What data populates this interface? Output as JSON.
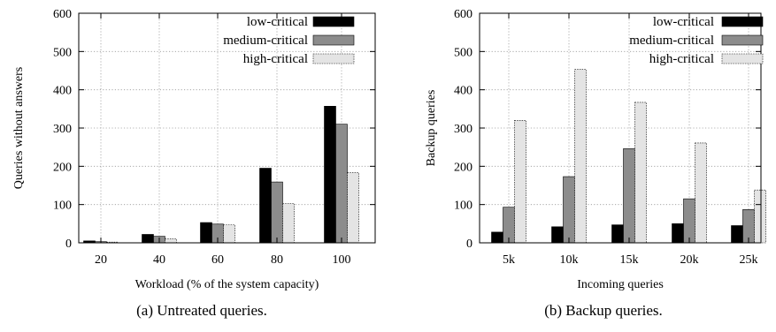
{
  "colors": {
    "low": "#000000",
    "medium": "#8c8c8c",
    "high": "#e4e4e4"
  },
  "chart_data": [
    {
      "type": "bar",
      "caption": "(a)  Untreated queries.",
      "xlabel": "Workload (% of the system capacity)",
      "ylabel": "Queries without answers",
      "ylim": [
        0,
        600
      ],
      "yticks": [
        0,
        100,
        200,
        300,
        400,
        500,
        600
      ],
      "categories": [
        "20",
        "40",
        "60",
        "80",
        "100"
      ],
      "grid": true,
      "legend_position": "top-right",
      "series": [
        {
          "name": "low-critical",
          "color_key": "low",
          "values": [
            5,
            22,
            53,
            195,
            357
          ]
        },
        {
          "name": "medium-critical",
          "color_key": "medium",
          "values": [
            3,
            17,
            49,
            159,
            310
          ]
        },
        {
          "name": "high-critical",
          "color_key": "high",
          "values": [
            2,
            10,
            47,
            103,
            183
          ]
        }
      ]
    },
    {
      "type": "bar",
      "caption": "(b)  Backup queries.",
      "xlabel": "Incoming queries",
      "ylabel": "Backup queries",
      "ylim": [
        0,
        600
      ],
      "yticks": [
        0,
        100,
        200,
        300,
        400,
        500,
        600
      ],
      "categories": [
        "5k",
        "10k",
        "15k",
        "20k",
        "25k"
      ],
      "grid": true,
      "legend_position": "top-right",
      "series": [
        {
          "name": "low-critical",
          "color_key": "low",
          "values": [
            28,
            42,
            47,
            50,
            45
          ]
        },
        {
          "name": "medium-critical",
          "color_key": "medium",
          "values": [
            93,
            173,
            246,
            115,
            87
          ]
        },
        {
          "name": "high-critical",
          "color_key": "high",
          "values": [
            320,
            453,
            367,
            261,
            138
          ]
        }
      ]
    }
  ]
}
